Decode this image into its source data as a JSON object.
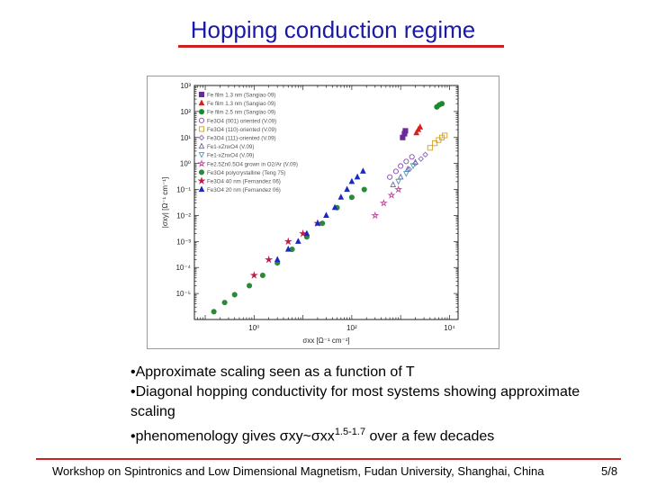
{
  "slide": {
    "title": "Hopping conduction regime",
    "footer": "Workshop on Spintronics and Low Dimensional Magnetism, Fudan University, Shanghai, China",
    "page": "5/8",
    "accent_rule_color": "#cc2222",
    "title_color": "#1a1aa6"
  },
  "bullets": [
    "•Approximate scaling seen as a function of T",
    "•Diagonal hopping conductivity for most systems showing approximate scaling",
    "•phenomenology gives σxy~σxx1.5-1.7 over a few decades"
  ],
  "chart_data": {
    "type": "scatter",
    "xlabel": "σxx [Ω⁻¹ cm⁻¹]",
    "ylabel": "|σxy| [Ω⁻¹ cm⁻¹]",
    "x_scale": "log",
    "y_scale": "log",
    "xlim": [
      0.06,
      15000
    ],
    "ylim": [
      1e-06,
      1000
    ],
    "x_ticks": [
      {
        "value": 1,
        "label": "10⁰"
      },
      {
        "value": 100,
        "label": "10²"
      },
      {
        "value": 10000,
        "label": "10⁴"
      }
    ],
    "y_ticks": [
      {
        "value": 1000,
        "label": "10³"
      },
      {
        "value": 100,
        "label": "10²"
      },
      {
        "value": 10,
        "label": "10¹"
      },
      {
        "value": 1,
        "label": "10⁰"
      },
      {
        "value": 0.1,
        "label": "10⁻¹"
      },
      {
        "value": 0.01,
        "label": "10⁻²"
      },
      {
        "value": 0.001,
        "label": "10⁻³"
      },
      {
        "value": 0.0001,
        "label": "10⁻⁴"
      },
      {
        "value": 1e-05,
        "label": "10⁻⁵"
      }
    ],
    "legend_placement": "top-left",
    "series": [
      {
        "name": "Fe film 1.3 nm (Sangiao 09)",
        "marker": "square",
        "filled": true,
        "color": "#6a2a9e",
        "x": [
          1100,
          1200,
          1250
        ],
        "y": [
          10,
          14,
          18
        ]
      },
      {
        "name": "Fe film 1.3 nm (Sangiao 09)",
        "marker": "triangle",
        "filled": true,
        "color": "#d62020",
        "x": [
          2100,
          2300,
          2500
        ],
        "y": [
          15,
          20,
          25
        ]
      },
      {
        "name": "Fe film 2.5 nm (Sangiao 09)",
        "marker": "circle",
        "filled": true,
        "color": "#1a8a2a",
        "x": [
          5500,
          6200,
          7000
        ],
        "y": [
          150,
          180,
          200
        ]
      },
      {
        "name": "Fe3O4 (001) oriented (V.09)",
        "marker": "circle",
        "filled": false,
        "color": "#8a4ab8",
        "x": [
          600,
          800,
          1000,
          1300,
          1700
        ],
        "y": [
          0.3,
          0.5,
          0.8,
          1.2,
          1.8
        ]
      },
      {
        "name": "Fe3O4 (110)-oriented (V.09)",
        "marker": "square",
        "filled": false,
        "color": "#d4a020",
        "x": [
          4000,
          5000,
          6000,
          7000,
          8000
        ],
        "y": [
          4,
          6,
          8,
          10,
          12
        ]
      },
      {
        "name": "Fe3O4 (111)-oriented (V.09)",
        "marker": "diamond",
        "filled": false,
        "color": "#8a6ab8",
        "x": [
          1500,
          2000,
          2600,
          3200
        ],
        "y": [
          0.6,
          1,
          1.5,
          2.2
        ]
      },
      {
        "name": "Fe1-xZnxO4 (V.09)",
        "marker": "triangle",
        "filled": false,
        "color": "#6a6aa0",
        "x": [
          700,
          1000,
          1400,
          2000
        ],
        "y": [
          0.15,
          0.3,
          0.6,
          1.1
        ]
      },
      {
        "name": "Fe1-xZnxO4 (V.09)",
        "marker": "triangle-down",
        "filled": false,
        "color": "#4a9ab8",
        "x": [
          900,
          1300,
          1800
        ],
        "y": [
          0.2,
          0.4,
          0.8
        ]
      },
      {
        "name": "Fe2.5Zn0.5O4 grown in O2/Ar (V.09)",
        "marker": "star",
        "filled": false,
        "color": "#c04aa0",
        "x": [
          300,
          450,
          650,
          900
        ],
        "y": [
          0.01,
          0.03,
          0.06,
          0.1
        ]
      },
      {
        "name": "Fe3O4 polycrystalline (Teng 75)",
        "marker": "circle",
        "filled": true,
        "color": "#2a8a3a",
        "x": [
          0.15,
          0.25,
          0.4,
          0.8,
          1.5,
          3,
          6,
          12,
          25,
          50,
          100,
          180
        ],
        "y": [
          2e-06,
          4.5e-06,
          9e-06,
          2e-05,
          5e-05,
          0.00015,
          0.0005,
          0.0015,
          0.005,
          0.02,
          0.05,
          0.1
        ]
      },
      {
        "name": "Fe3O4 40 nm (Fernandez 06)",
        "marker": "star",
        "filled": true,
        "color": "#c01a4a",
        "x": [
          1,
          2,
          5,
          10,
          20
        ],
        "y": [
          5e-05,
          0.0002,
          0.001,
          0.002,
          0.005
        ]
      },
      {
        "name": "Fe3O4 20 nm (Fernandez 06)",
        "marker": "triangle",
        "filled": true,
        "color": "#1a2ac0",
        "x": [
          3,
          5,
          8,
          12,
          20,
          30,
          45,
          60,
          80,
          100,
          130,
          170
        ],
        "y": [
          0.0002,
          0.0005,
          0.001,
          0.002,
          0.005,
          0.01,
          0.02,
          0.05,
          0.1,
          0.2,
          0.3,
          0.5
        ]
      }
    ]
  }
}
